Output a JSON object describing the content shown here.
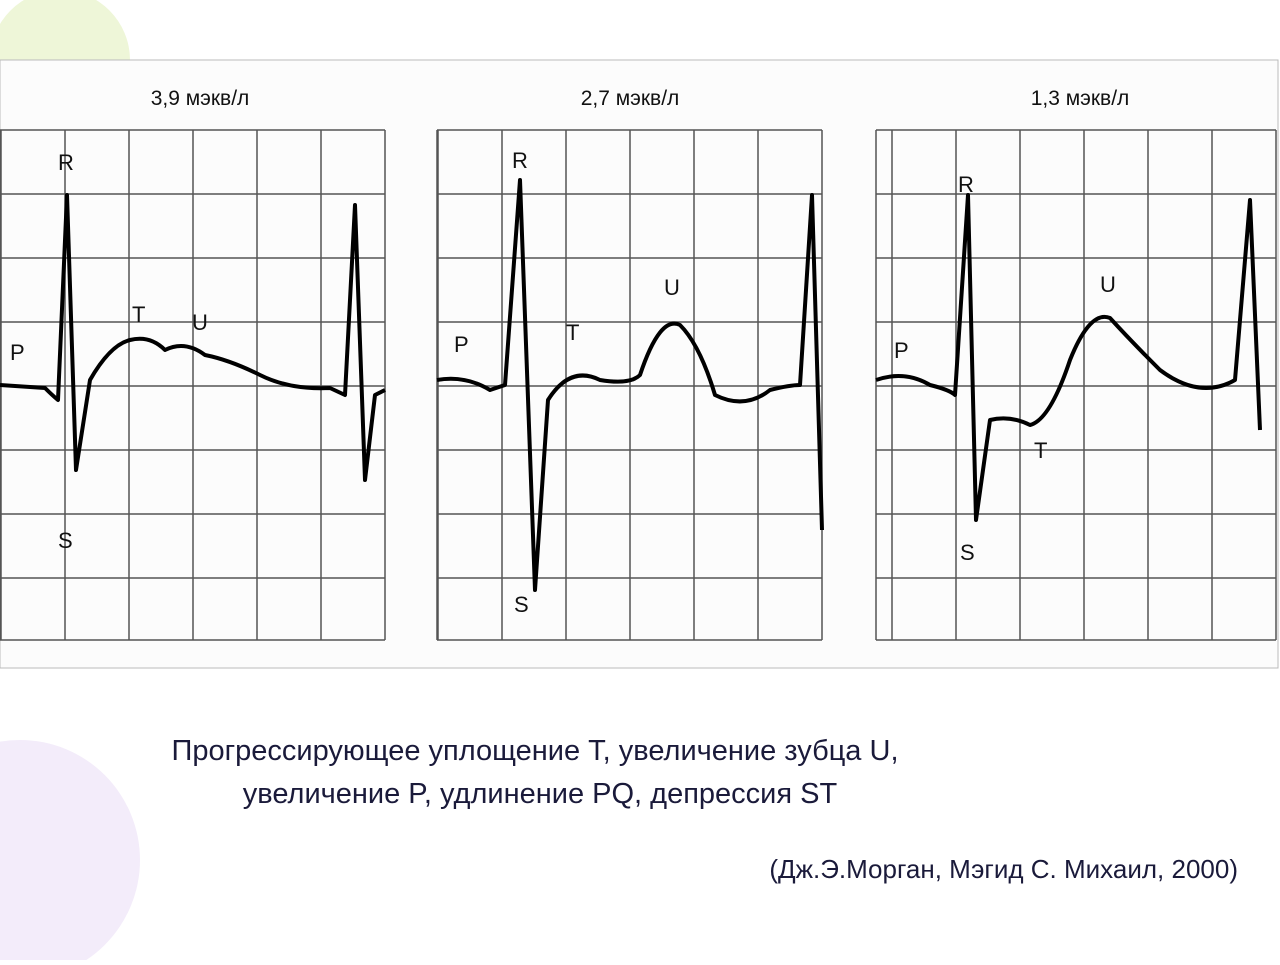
{
  "panels": [
    {
      "title": "3,9 мэкв/л",
      "waves": [
        "R",
        "T",
        "U",
        "P",
        "S"
      ]
    },
    {
      "title": "2,7 мэкв/л",
      "waves": [
        "R",
        "T",
        "U",
        "P",
        "S"
      ]
    },
    {
      "title": "1,3 мэкв/л",
      "waves": [
        "R",
        "U",
        "P",
        "T",
        "S"
      ]
    }
  ],
  "caption": {
    "lines": [
      "Прогрессирующее уплощение T, увеличение зубца U,",
      "увеличение P, удлинение PQ, депрессия ST"
    ]
  },
  "citation": "(Дж.Э.Морган, Мэгид С. Михаил, 2000)"
}
